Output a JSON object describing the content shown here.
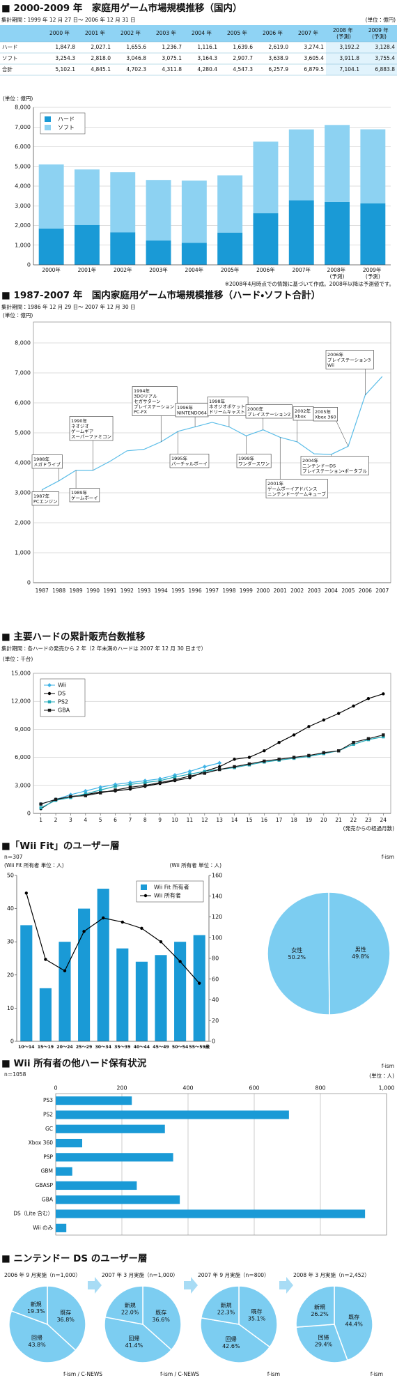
{
  "table": {
    "title": "■ 2000-2009 年　家庭用ゲーム市場規模推移（国内）",
    "period": "集計期間：1999 年 12 月 27 日～ 2006 年 12 月 31 日",
    "unit": "(単位：億円)",
    "columns": [
      "2000 年",
      "2001 年",
      "2002 年",
      "2003 年",
      "2004 年",
      "2005 年",
      "2006 年",
      "2007 年",
      "2008 年\n(予測)",
      "2009 年\n(予測)"
    ],
    "rows": [
      {
        "label": "ハード",
        "cells": [
          "1,847.8",
          "2,027.1",
          "1,655.6",
          "1,236.7",
          "1,116.1",
          "1,639.6",
          "2,619.0",
          "3,274.1",
          "3,192.2",
          "3,128.4"
        ]
      },
      {
        "label": "ソフト",
        "cells": [
          "3,254.3",
          "2,818.0",
          "3,046.8",
          "3,075.1",
          "3,164.3",
          "2,907.7",
          "3,638.9",
          "3,605.4",
          "3,911.8",
          "3,755.4"
        ]
      },
      {
        "label": "合計",
        "cells": [
          "5,102.1",
          "4,845.1",
          "4,702.3",
          "4,311.8",
          "4,280.4",
          "4,547.3",
          "6,257.9",
          "6,879.5",
          "7,104.1",
          "6,883.8"
        ]
      }
    ]
  },
  "chart_data": [
    {
      "type": "bar",
      "stacked": true,
      "y_label": "(単位：億円)",
      "categories": [
        "2000年",
        "2001年",
        "2002年",
        "2003年",
        "2004年",
        "2005年",
        "2006年",
        "2007年",
        "2008年\n(予測)",
        "2009年\n(予測)"
      ],
      "series": [
        {
          "name": "ハード",
          "color": "#1a9ad6",
          "values": [
            1847.8,
            2027.1,
            1655.6,
            1236.7,
            1116.1,
            1639.6,
            2619.0,
            3274.1,
            3192.2,
            3128.4
          ]
        },
        {
          "name": "ソフト",
          "color": "#8dd2f2",
          "values": [
            3254.3,
            2818.0,
            3046.8,
            3075.1,
            3164.3,
            2907.7,
            3638.9,
            3605.4,
            3911.8,
            3755.4
          ]
        }
      ],
      "ylim": [
        0,
        8000
      ],
      "yticks": [
        0,
        {
          "value": 1000,
          "label": "1,000"
        },
        {
          "value": 2000,
          "label": "2,000"
        },
        {
          "value": 3000,
          "label": "3,000"
        },
        {
          "value": 4000,
          "label": "4,000"
        },
        {
          "value": 5000,
          "label": "5,000"
        },
        {
          "value": 6000,
          "label": "6,000"
        },
        {
          "value": 7000,
          "label": "7,000"
        },
        {
          "value": 8000,
          "label": "8,000"
        }
      ],
      "grid": true,
      "legend": "upper left",
      "note": "※2008年4月時点での情報に基づいて作成。2008年以降は予測値です。"
    },
    {
      "type": "line",
      "heading": "■ 1987-2007 年　国内家庭用ゲーム市場規模推移（ハード・ソフト合計）",
      "period": "集計期間：1986 年 12 月 29 日～ 2007 年 12 月 30 日",
      "y_label": "(単位：億円)",
      "categories": [
        "1987",
        "1988",
        "1989",
        "1990",
        "1991",
        "1992",
        "1993",
        "1994",
        "1995",
        "1996",
        "1997",
        "1998",
        "1999",
        "2000",
        "2001",
        "2002",
        "2003",
        "2004",
        "2005",
        "2006",
        "2007"
      ],
      "values": [
        3100,
        3400,
        3750,
        3750,
        4050,
        4400,
        4450,
        4700,
        5050,
        5200,
        5350,
        5200,
        4900,
        5100,
        4850,
        4700,
        4300,
        4280,
        4550,
        6260,
        6880
      ],
      "color": "#5bbde8",
      "ylim": [
        0,
        8000
      ],
      "yticks": [
        0,
        {
          "value": 1000,
          "label": "1,000"
        },
        {
          "value": 2000,
          "label": "2,000"
        },
        {
          "value": 3000,
          "label": "3,000"
        },
        {
          "value": 4000,
          "label": "4,000"
        },
        {
          "value": 5000,
          "label": "5,000"
        },
        {
          "value": 6000,
          "label": "6,000"
        },
        {
          "value": 7000,
          "label": "7,000"
        },
        {
          "value": 8000,
          "label": "8,000"
        }
      ],
      "grid": true,
      "annotations": [
        "1987年\nPCエンジン",
        "1988年\nメガドライブ",
        "1989年\nゲームボーイ",
        "1990年\nネオジオ\nゲームギア\nスーパーファミコン",
        "1994年\n3DOリアル\nセガサターン\nプレイステーション\nPC-FX",
        "1995年\nバーチャルボーイ",
        "1996年\nNINTENDO64",
        "1998年\nネオジオポケット\nドリームキャスト",
        "1999年\nワンダースワン",
        "2000年\nプレイステーション2",
        "2001年\nゲームボーイアドバンス\nニンテンドーゲームキューブ",
        "2002年\nXbox",
        "2004年\nニンテンドーDS\nプレイステーション・ポータブル",
        "2005年\nXbox 360",
        "2006年\nプレイステーション3\nWii"
      ]
    },
    {
      "type": "line",
      "heading": "■ 主要ハードの累計販売台数推移",
      "period": "集計期間：各ハードの発売から 2 年（2 年未満のハードは 2007 年 12 月 30 日まで）",
      "y_label": "(単位：千台)",
      "x_label": "(発売からの経過月数)",
      "x": [
        1,
        2,
        3,
        4,
        5,
        6,
        7,
        8,
        9,
        10,
        11,
        12,
        13,
        14,
        15,
        16,
        17,
        18,
        19,
        20,
        21,
        22,
        23,
        24
      ],
      "xlim": [
        0.5,
        24.5
      ],
      "xticks": [
        1,
        2,
        3,
        4,
        5,
        6,
        7,
        8,
        9,
        10,
        11,
        12,
        13,
        14,
        15,
        16,
        17,
        18,
        19,
        20,
        21,
        22,
        23,
        24
      ],
      "series": [
        {
          "name": "Wii",
          "color": "#3fb3e6",
          "marker": "diamond",
          "values": [
            1000,
            1500,
            2000,
            2400,
            2800,
            3100,
            3300,
            3500,
            3700,
            4100,
            4500,
            5000,
            5400,
            null,
            null,
            null,
            null,
            null,
            null,
            null,
            null,
            null,
            null,
            null
          ]
        },
        {
          "name": "DS",
          "color": "#000000",
          "marker": "circle",
          "values": [
            500,
            1500,
            1800,
            2000,
            2300,
            2400,
            2600,
            2900,
            3200,
            3500,
            3800,
            4500,
            5000,
            5800,
            6000,
            6700,
            7600,
            8400,
            9300,
            10000,
            10700,
            11500,
            12300,
            12800
          ]
        },
        {
          "name": "PS2",
          "color": "#22a9b8",
          "marker": "square",
          "values": [
            600,
            1400,
            1700,
            2100,
            2500,
            2900,
            3100,
            3300,
            3500,
            3900,
            4200,
            4500,
            4700,
            4900,
            5200,
            5500,
            5700,
            5900,
            6100,
            6400,
            6700,
            7400,
            7900,
            8200
          ]
        },
        {
          "name": "GBA",
          "color": "#1a1a1a",
          "marker": "square",
          "values": [
            1000,
            1500,
            1800,
            1900,
            2200,
            2500,
            2800,
            3000,
            3300,
            3600,
            4000,
            4300,
            4700,
            5000,
            5300,
            5600,
            5800,
            6000,
            6200,
            6500,
            6700,
            7600,
            8000,
            8400
          ]
        }
      ],
      "ylim": [
        0,
        15000
      ],
      "yticks": [
        0,
        {
          "value": 3000,
          "label": "3,000"
        },
        {
          "value": 6000,
          "label": "6,000"
        },
        {
          "value": 9000,
          "label": "9,000"
        },
        {
          "value": 12000,
          "label": "12,000"
        },
        {
          "value": 15000,
          "label": "15,000"
        }
      ],
      "grid": true,
      "legend": "upper left"
    },
    {
      "type": "bar",
      "heading": "■「Wii Fit」のユーザー層",
      "n": "n＝307",
      "y_label": "(Wii Fit 所有者 単位：人)",
      "y2_label": "(Wii 所有者 単位：人)",
      "categories": [
        "10～14",
        "15～19",
        "20～24",
        "25～29",
        "30～34",
        "35～39",
        "40～44",
        "45～49",
        "50～54",
        "55～59歳"
      ],
      "series": [
        {
          "name": "Wii Fit 所有者",
          "color": "#1a9ad6",
          "values": [
            35,
            16,
            30,
            40,
            46,
            28,
            24,
            26,
            30,
            32
          ]
        },
        {
          "name": "Wii 所有者",
          "color": "#000000",
          "type": "line",
          "marker": "circle",
          "axis": "y2",
          "values": [
            143,
            79,
            68,
            106,
            119,
            115,
            109,
            96,
            77,
            56
          ]
        }
      ],
      "ylim": [
        0,
        50
      ],
      "yticks": [
        0,
        10,
        20,
        30,
        40,
        50
      ],
      "y2lim": [
        0,
        160
      ],
      "y2ticks": [
        0,
        20,
        40,
        60,
        80,
        100,
        120,
        140,
        160
      ],
      "legend": "upper right"
    },
    {
      "type": "pie",
      "source": "f-ism",
      "categories": [
        "男性",
        "女性"
      ],
      "values": [
        49.8,
        50.2
      ],
      "value_labels": [
        "49.8%",
        "50.2%"
      ],
      "color": "#7ccdf1"
    },
    {
      "type": "bar",
      "orientation": "horizontal",
      "heading": "■ Wii 所有者の他ハード保有状況",
      "n": "n＝1058",
      "source": "f-ism",
      "x_label": "(単位：人)",
      "categories": [
        "PS3",
        "PS2",
        "GC",
        "Xbox 360",
        "PSP",
        "GBM",
        "GBASP",
        "GBA",
        "DS（Lite 含む）",
        "Wii のみ"
      ],
      "values": [
        230,
        705,
        330,
        80,
        355,
        50,
        245,
        375,
        935,
        32
      ],
      "color": "#1a9ad6",
      "xlim": [
        0,
        1000
      ],
      "xticks": [
        0,
        200,
        400,
        600,
        800,
        {
          "value": 1000,
          "label": "1,000"
        }
      ],
      "grid": true
    },
    {
      "type": "pie",
      "heading": "■ ニンテンドー DS のユーザー層",
      "title": "2006 年 9 月実施（n＝1,000）",
      "source": "f-ism / C-NEWS",
      "categories": [
        "既存",
        "回帰",
        "新規"
      ],
      "values": [
        36.8,
        43.8,
        19.3
      ],
      "value_labels": [
        "36.8%",
        "43.8%",
        "19.3%"
      ],
      "color": "#7ccdf1"
    },
    {
      "type": "pie",
      "title": "2007 年 3 月実施（n＝1,000）",
      "source": "f-ism / C-NEWS",
      "categories": [
        "既存",
        "回帰",
        "新規"
      ],
      "values": [
        36.6,
        41.4,
        22.0
      ],
      "value_labels": [
        "36.6%",
        "41.4%",
        "22.0%"
      ],
      "color": "#7ccdf1"
    },
    {
      "type": "pie",
      "title": "2007 年 9 月実施（n＝800）",
      "source": "f-ism",
      "categories": [
        "既存",
        "回帰",
        "新規"
      ],
      "values": [
        35.1,
        42.6,
        22.3
      ],
      "value_labels": [
        "35.1%",
        "42.6%",
        "22.3%"
      ],
      "color": "#7ccdf1"
    },
    {
      "type": "pie",
      "title": "2008 年 3 月実施（n＝2,452）",
      "source": "f-ism",
      "categories": [
        "既存",
        "回帰",
        "新規"
      ],
      "values": [
        44.4,
        29.4,
        26.2
      ],
      "value_labels": [
        "44.4%",
        "29.4%",
        "26.2%"
      ],
      "color": "#7ccdf1"
    }
  ]
}
